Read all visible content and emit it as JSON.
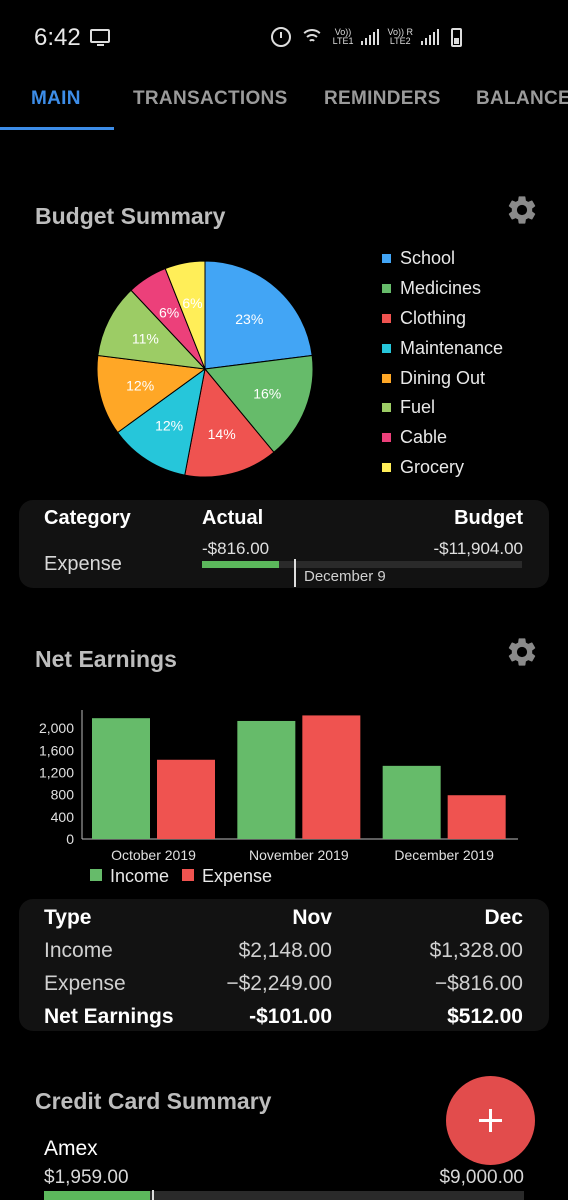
{
  "status_bar": {
    "time": "6:42",
    "sim1_label_top": "Vo))",
    "sim1_label_bottom": "LTE1",
    "sim2_label_top": "Vo)) R",
    "sim2_label_bottom": "LTE2"
  },
  "tabs": [
    {
      "label": "MAIN",
      "active": true
    },
    {
      "label": "TRANSACTIONS",
      "active": false
    },
    {
      "label": "REMINDERS",
      "active": false
    },
    {
      "label": "BALANCE",
      "active": false
    }
  ],
  "budget_summary": {
    "title": "Budget Summary",
    "pie": [
      {
        "label": "School",
        "percent": 23,
        "color": "#42a5f5"
      },
      {
        "label": "Medicines",
        "percent": 16,
        "color": "#66bb6a"
      },
      {
        "label": "Clothing",
        "percent": 14,
        "color": "#ef5350"
      },
      {
        "label": "Maintenance",
        "percent": 12,
        "color": "#26c6da"
      },
      {
        "label": "Dining Out",
        "percent": 12,
        "color": "#ffa726"
      },
      {
        "label": "Fuel",
        "percent": 11,
        "color": "#9ccc65"
      },
      {
        "label": "Cable",
        "percent": 6,
        "color": "#ec407a"
      },
      {
        "label": "Grocery",
        "percent": 6,
        "color": "#ffee58"
      }
    ],
    "table": {
      "col_category": "Category",
      "col_actual": "Actual",
      "col_budget": "Budget",
      "row_label": "Expense",
      "actual": "-$816.00",
      "budget": "-$11,904.00",
      "progress_fraction": 0.24,
      "marker_label": "December 9"
    }
  },
  "net_earnings": {
    "title": "Net Earnings",
    "legend_income": "Income",
    "legend_expense": "Expense",
    "income_color": "#66bb6a",
    "expense_color": "#ef5350",
    "table": {
      "col_type": "Type",
      "col_nov": "Nov",
      "col_dec": "Dec",
      "rows": [
        {
          "type": "Income",
          "nov": "$2,148.00",
          "dec": "$1,328.00"
        },
        {
          "type": "Expense",
          "nov": "−$2,249.00",
          "dec": "−$816.00"
        },
        {
          "type": "Net Earnings",
          "nov": "-$101.00",
          "dec": "$512.00"
        }
      ]
    }
  },
  "chart_data": {
    "type": "bar",
    "categories": [
      "October 2019",
      "November 2019",
      "December 2019"
    ],
    "series": [
      {
        "name": "Income",
        "values": [
          2180,
          2130,
          1320
        ]
      },
      {
        "name": "Expense",
        "values": [
          1430,
          2230,
          790
        ]
      }
    ],
    "yticks": [
      "0",
      "400",
      "800",
      "1,200",
      "1,600",
      "2,000"
    ],
    "ylim": [
      0,
      2400
    ],
    "legend_position": "bottom-left"
  },
  "credit_card": {
    "title": "Credit Card Summary",
    "name": "Amex",
    "balance": "$1,959.00",
    "limit": "$9,000.00",
    "progress_fraction": 0.22
  },
  "fab": {
    "symbol": "+"
  }
}
